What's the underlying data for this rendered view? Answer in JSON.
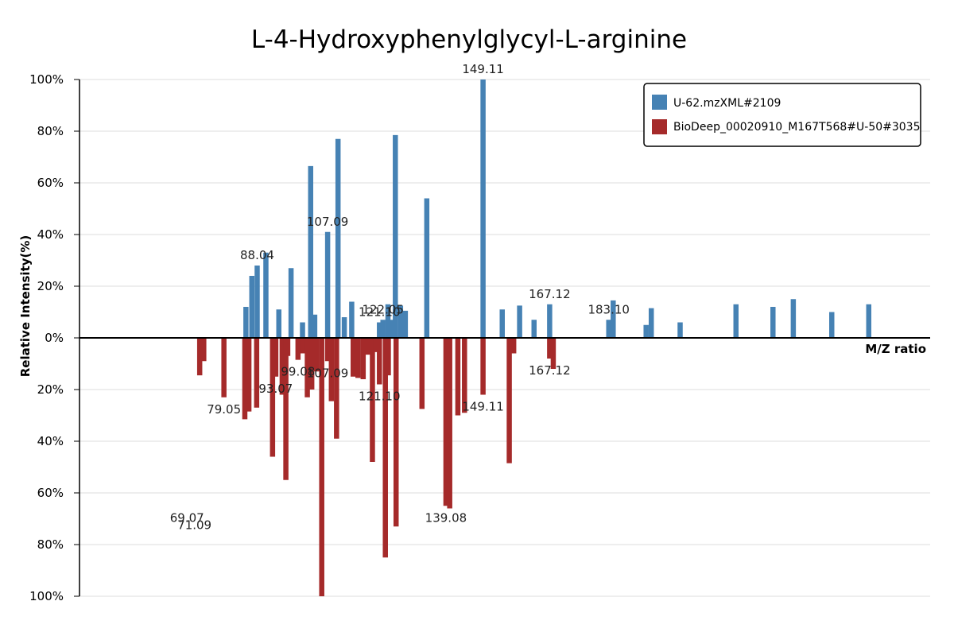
{
  "chart_data": {
    "type": "bar",
    "title": "L-4-Hydroxyphenylglycyl-L-arginine",
    "xlabel": "M/Z ratio",
    "ylabel": "Relative Intensity(%)",
    "ylim": [
      -100,
      100
    ],
    "xlim": [
      40,
      270
    ],
    "y_ticks": [
      "100%",
      "80%",
      "60%",
      "40%",
      "20%",
      "0%",
      "20%",
      "40%",
      "60%",
      "80%",
      "100%"
    ],
    "grid": true,
    "legend_position": "top-right",
    "colors": {
      "top": "#4682b4",
      "bottom": "#a52a2a",
      "axis": "#000000",
      "grid": "#dcdcdc"
    },
    "series": [
      {
        "name": "U-62.mzXML#2109",
        "direction": "up",
        "x": [
          85.0,
          86.6,
          88.04,
          90.4,
          93.9,
          97.2,
          100.3,
          102.5,
          103.6,
          107.09,
          109.9,
          111.6,
          113.6,
          121.1,
          122.05,
          123.4,
          124.1,
          125.4,
          126.8,
          128.1,
          133.9,
          149.11,
          154.3,
          159.0,
          162.9,
          167.12,
          183.1,
          184.3,
          193.2,
          194.6,
          202.4,
          217.5,
          227.5,
          233.0,
          243.4,
          253.4
        ],
        "y": [
          12,
          24,
          28,
          33,
          11,
          27,
          6,
          66.5,
          9,
          41,
          77,
          8,
          14,
          6,
          7,
          13,
          7,
          78.5,
          12.5,
          10.5,
          54,
          100,
          11,
          12.5,
          7,
          13,
          7,
          14.5,
          5,
          11.5,
          6,
          13,
          12,
          15,
          10,
          13
        ],
        "labeled": [
          88.04,
          107.09,
          121.1,
          122.05,
          149.11,
          167.12,
          183.1
        ]
      },
      {
        "name": "BioDeep_00020910_M167T568#U-50#3035",
        "direction": "down",
        "x": [
          72.5,
          73.6,
          79.05,
          84.7,
          85.8,
          87.9,
          92.2,
          93.07,
          94.8,
          95.8,
          96.3,
          99.08,
          100.4,
          101.6,
          102.8,
          104.1,
          105.5,
          107.09,
          108.1,
          109.5,
          114.0,
          115.3,
          116.7,
          118.0,
          119.2,
          120.2,
          121.1,
          122.7,
          123.5,
          125.6,
          132.6,
          139.08,
          140.1,
          142.3,
          144.1,
          149.11,
          156.2,
          157.4,
          167.12,
          168.1
        ],
        "y": [
          14.5,
          9,
          23,
          31.5,
          28.5,
          27,
          46,
          15,
          22,
          55,
          7,
          8.5,
          6,
          23,
          20,
          13,
          100,
          9,
          24.5,
          39,
          15,
          15.5,
          16,
          6.5,
          48,
          5.5,
          18,
          85,
          14.5,
          73,
          27.5,
          65,
          66,
          30,
          29,
          22,
          48.5,
          6,
          8,
          12
        ],
        "labeled": [
          69.07,
          71.09,
          79.05,
          93.07,
          99.08,
          107.09,
          121.1,
          139.08,
          149.11,
          167.12
        ]
      }
    ],
    "annotations_top": [
      "88.04",
      "107.09",
      "121.10",
      "122.05",
      "149.11",
      "167.12",
      "183.10"
    ],
    "annotations_bottom": [
      "69.07",
      "71.09",
      "79.05",
      "93.07",
      "99.08",
      "107.09",
      "121.10",
      "139.08",
      "149.11",
      "167.12"
    ]
  }
}
